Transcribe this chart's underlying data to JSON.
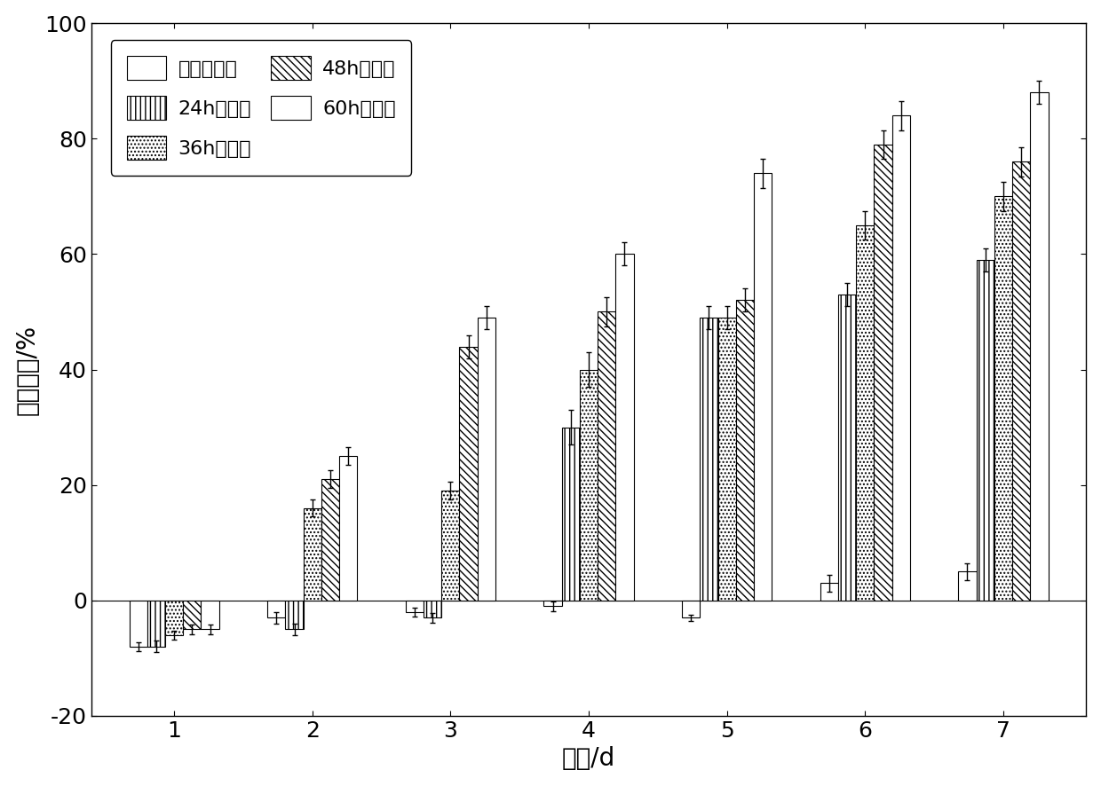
{
  "categories": [
    1,
    2,
    3,
    4,
    5,
    6,
    7
  ],
  "series": [
    {
      "label": "发酵培养基",
      "hatch": "",
      "facecolor": "white",
      "edgecolor": "black",
      "values": [
        -8,
        -3,
        -2,
        -1,
        -3,
        3,
        5
      ],
      "errors": [
        0.8,
        1.0,
        0.8,
        0.8,
        0.5,
        1.5,
        1.5
      ]
    },
    {
      "label": "24h发酵液",
      "hatch": "|||",
      "facecolor": "white",
      "edgecolor": "black",
      "values": [
        -8,
        -5,
        -3,
        30,
        49,
        53,
        59
      ],
      "errors": [
        1.0,
        1.0,
        0.8,
        3.0,
        2.0,
        2.0,
        2.0
      ]
    },
    {
      "label": "36h发酵液",
      "hatch": "....",
      "facecolor": "white",
      "edgecolor": "black",
      "values": [
        -6,
        16,
        19,
        40,
        49,
        65,
        70
      ],
      "errors": [
        0.8,
        1.5,
        1.5,
        3.0,
        2.0,
        2.5,
        2.5
      ]
    },
    {
      "label": "48h发酵液",
      "hatch": "\\\\\\\\",
      "facecolor": "white",
      "edgecolor": "black",
      "values": [
        -5,
        21,
        44,
        50,
        52,
        79,
        76
      ],
      "errors": [
        0.8,
        1.5,
        2.0,
        2.5,
        2.0,
        2.5,
        2.5
      ]
    },
    {
      "label": "60h发酵液",
      "hatch": "ZZ",
      "facecolor": "white",
      "edgecolor": "black",
      "values": [
        -5,
        25,
        49,
        60,
        74,
        84,
        88
      ],
      "errors": [
        0.8,
        1.5,
        2.0,
        2.0,
        2.5,
        2.5,
        2.0
      ]
    }
  ],
  "xlabel": "时间/d",
  "ylabel": "溶藻效率/%",
  "ylim": [
    -20,
    100
  ],
  "yticks": [
    -20,
    0,
    20,
    40,
    60,
    80,
    100
  ],
  "bar_width": 0.13,
  "figsize": [
    12.4,
    8.86
  ],
  "dpi": 100
}
